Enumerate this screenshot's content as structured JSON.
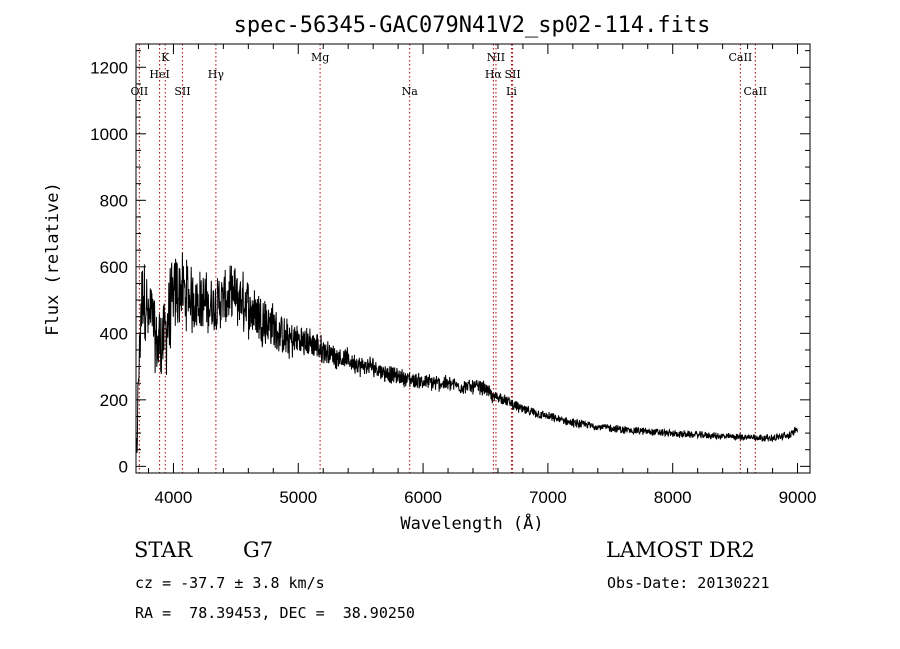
{
  "chart_data": {
    "type": "line",
    "title": "spec-56345-GAC079N41V2_sp02-114.fits",
    "xlabel": "Wavelength (Å)",
    "ylabel": "Flux (relative)",
    "xlim": [
      3700,
      9100
    ],
    "ylim": [
      -20,
      1270
    ],
    "x_ticks": [
      4000,
      5000,
      6000,
      7000,
      8000,
      9000
    ],
    "y_ticks": [
      0,
      200,
      400,
      600,
      800,
      1000,
      1200
    ],
    "spectrum_envelope": {
      "x": [
        3700,
        3720,
        3740,
        3760,
        3780,
        3800,
        3830,
        3860,
        3900,
        3950,
        4000,
        4050,
        4100,
        4150,
        4200,
        4300,
        4400,
        4500,
        4600,
        4700,
        4800,
        4900,
        5000,
        5100,
        5200,
        5300,
        5400,
        5500,
        5600,
        5700,
        5800,
        5900,
        6000,
        6100,
        6200,
        6300,
        6400,
        6500,
        6563,
        6600,
        6700,
        6800,
        7000,
        7200,
        7400,
        7600,
        7800,
        8000,
        8200,
        8400,
        8600,
        8800,
        8950,
        9000
      ],
      "y": [
        40,
        250,
        470,
        520,
        500,
        430,
        470,
        360,
        380,
        420,
        510,
        540,
        520,
        500,
        500,
        480,
        500,
        510,
        480,
        450,
        420,
        380,
        380,
        370,
        350,
        330,
        320,
        300,
        300,
        280,
        270,
        260,
        255,
        250,
        250,
        240,
        240,
        235,
        205,
        210,
        190,
        170,
        150,
        130,
        120,
        110,
        105,
        98,
        95,
        90,
        88,
        85,
        95,
        115
      ],
      "noise": [
        0,
        80,
        130,
        150,
        150,
        130,
        120,
        120,
        140,
        160,
        140,
        130,
        120,
        110,
        110,
        100,
        100,
        110,
        100,
        90,
        80,
        70,
        60,
        50,
        45,
        40,
        38,
        35,
        35,
        32,
        30,
        30,
        28,
        28,
        26,
        25,
        25,
        25,
        25,
        22,
        20,
        18,
        16,
        15,
        14,
        14,
        13,
        13,
        12,
        12,
        12,
        12,
        15,
        15
      ]
    },
    "spectral_lines": [
      {
        "name": "OII",
        "x": 3727,
        "row": 3
      },
      {
        "name": "K",
        "x": 3934,
        "row": 1
      },
      {
        "name": "HeI",
        "x": 3889,
        "row": 2
      },
      {
        "name": "SII",
        "x": 4072,
        "row": 3
      },
      {
        "name": "Hγ",
        "x": 4340,
        "row": 2
      },
      {
        "name": "Mg",
        "x": 5175,
        "row": 1
      },
      {
        "name": "Na",
        "x": 5893,
        "row": 3
      },
      {
        "name": "NII",
        "x": 6584,
        "row": 1
      },
      {
        "name": "Hα",
        "x": 6563,
        "row": 2
      },
      {
        "name": "SII",
        "x": 6717,
        "row": 2
      },
      {
        "name": "Li",
        "x": 6708,
        "row": 3
      },
      {
        "name": "CaII",
        "x": 8542,
        "row": 1
      },
      {
        "name": "CaII",
        "x": 8662,
        "row": 3
      }
    ]
  },
  "info": {
    "object_type": "STAR",
    "subclass": "G7",
    "survey": "LAMOST DR2",
    "redshift": "cz = -37.7 ± 3.8 km/s",
    "obs_date": "Obs-Date: 20130221",
    "coords": "RA =  78.39453, DEC =  38.90250"
  }
}
